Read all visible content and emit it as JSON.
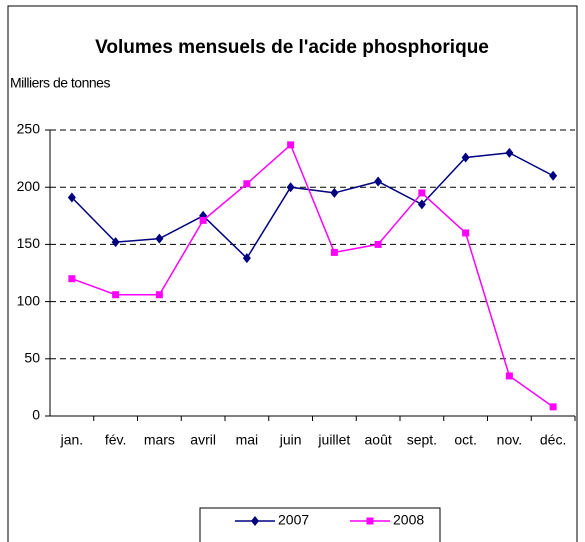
{
  "chart_data": {
    "type": "line",
    "title": "Volumes mensuels de l'acide phosphorique",
    "y_label": "Milliers de tonnes",
    "categories": [
      "jan.",
      "fév.",
      "mars",
      "avril",
      "mai",
      "juin",
      "juillet",
      "août",
      "sept.",
      "oct.",
      "nov.",
      "déc."
    ],
    "series": [
      {
        "name": "2007",
        "color": "#000080",
        "marker": "diamond",
        "values": [
          191,
          152,
          155,
          175,
          138,
          200,
          195,
          205,
          185,
          226,
          230,
          210
        ]
      },
      {
        "name": "2008",
        "color": "#ff00ff",
        "marker": "square",
        "values": [
          120,
          106,
          106,
          171,
          203,
          237,
          143,
          150,
          195,
          160,
          35,
          8
        ]
      }
    ],
    "ylim": [
      0,
      250
    ],
    "yticks": [
      0,
      50,
      100,
      150,
      200,
      250
    ],
    "grid": true,
    "legend": "bottom"
  }
}
